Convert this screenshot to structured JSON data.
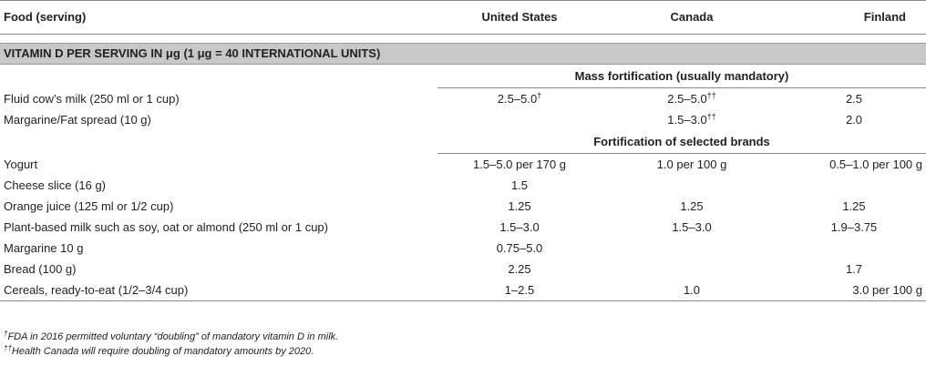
{
  "header": {
    "food_col": "Food (serving)",
    "us_col": "United States",
    "canada_col": "Canada",
    "finland_col": "Finland"
  },
  "section_title": "VITAMIN D PER SERVING IN μg (1 μg = 40 INTERNATIONAL UNITS)",
  "mass_fortification": {
    "label": "Mass fortification (usually mandatory)",
    "rows": [
      {
        "food": "Fluid cow’s milk (250 ml or 1 cup)",
        "us": "2.5–5.0",
        "us_mark": "†",
        "canada": "2.5–5.0",
        "canada_mark": "††",
        "finland": "2.5"
      },
      {
        "food": "Margarine/Fat spread (10 g)",
        "us": "",
        "us_mark": "",
        "canada": "1.5–3.0",
        "canada_mark": "††",
        "finland": "2.0"
      }
    ]
  },
  "selected_brands": {
    "label": "Fortification of selected brands",
    "rows": [
      {
        "food": "Yogurt",
        "us": "1.5–5.0 per 170 g",
        "canada": "1.0 per 100 g",
        "finland": "0.5–1.0 per 100 g"
      },
      {
        "food": "Cheese slice (16 g)",
        "us": "1.5",
        "canada": "",
        "finland": ""
      },
      {
        "food": "Orange juice (125 ml or 1/2 cup)",
        "us": "1.25",
        "canada": "1.25",
        "finland": "1.25"
      },
      {
        "food": "Plant-based milk such as soy, oat or almond (250 ml or 1 cup)",
        "us": "1.5–3.0",
        "canada": "1.5–3.0",
        "finland": "1.9–3.75"
      },
      {
        "food": "Margarine 10 g",
        "us": "0.75–5.0",
        "canada": "",
        "finland": ""
      },
      {
        "food": "Bread (100 g)",
        "us": "2.25",
        "canada": "",
        "finland": "1.7"
      },
      {
        "food": "Cereals, ready-to-eat (1/2–3/4 cup)",
        "us": "1–2.5",
        "canada": "1.0",
        "finland": "3.0 per 100 g"
      }
    ]
  },
  "footnotes": [
    {
      "mark": "†",
      "text": "FDA in 2016 permitted voluntary “doubling” of mandatory vitamin D in milk."
    },
    {
      "mark": "††",
      "text": "Health Canada will require doubling of mandatory amounts by 2020."
    }
  ]
}
